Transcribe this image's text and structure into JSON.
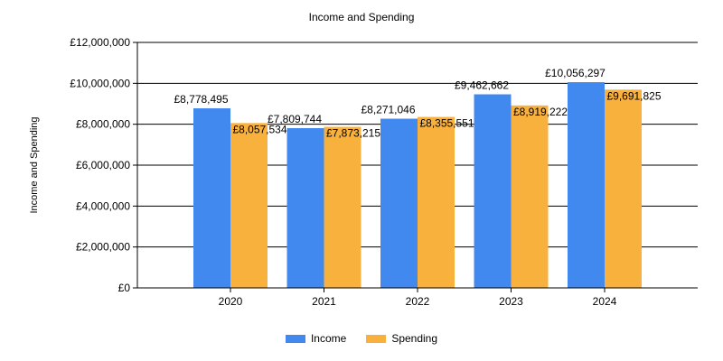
{
  "chart_data": {
    "type": "bar",
    "title": "Income and Spending",
    "xlabel": "",
    "ylabel": "Income and Spending",
    "categories": [
      "2020",
      "2021",
      "2022",
      "2023",
      "2024"
    ],
    "series": [
      {
        "name": "Income",
        "color": "#4189EE",
        "values": [
          8778495,
          7809744,
          8271046,
          9462662,
          10056297
        ],
        "labels": [
          "£8,778,495",
          "£7,809,744",
          "£8,271,046",
          "£9,462,662",
          "£10,056,297"
        ]
      },
      {
        "name": "Spending",
        "color": "#F9B13E",
        "values": [
          8057534,
          7873215,
          8355551,
          8919222,
          9691825
        ],
        "labels": [
          "£8,057,534",
          "£7,873,215",
          "£8,355,551",
          "£8,919,222",
          "£9,691,825"
        ]
      }
    ],
    "ylim": [
      0,
      12000000
    ],
    "yticks": [
      0,
      2000000,
      4000000,
      6000000,
      8000000,
      10000000,
      12000000
    ],
    "ytick_labels": [
      "£0",
      "£2,000,000",
      "£4,000,000",
      "£6,000,000",
      "£8,000,000",
      "£10,000,000",
      "£12,000,000"
    ],
    "grid": true,
    "legend_position": "bottom-center"
  }
}
